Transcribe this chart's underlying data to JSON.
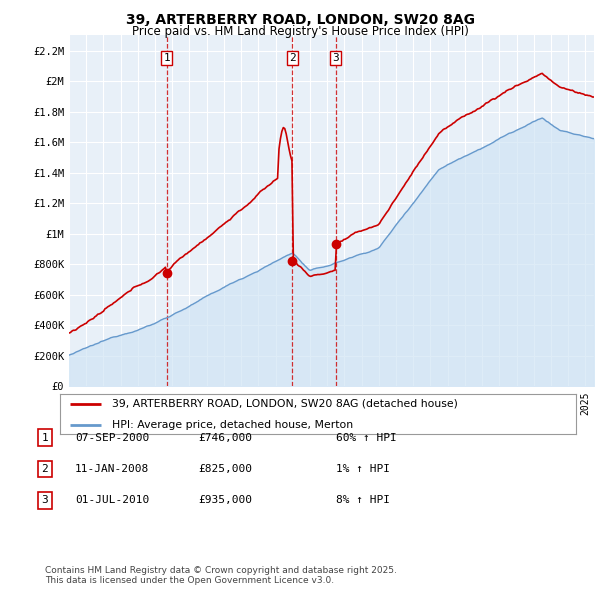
{
  "title_line1": "39, ARTERBERRY ROAD, LONDON, SW20 8AG",
  "title_line2": "Price paid vs. HM Land Registry's House Price Index (HPI)",
  "ylim": [
    0,
    2300000
  ],
  "yticks": [
    0,
    200000,
    400000,
    600000,
    800000,
    1000000,
    1200000,
    1400000,
    1600000,
    1800000,
    2000000,
    2200000
  ],
  "ytick_labels": [
    "£0",
    "£200K",
    "£400K",
    "£600K",
    "£800K",
    "£1M",
    "£1.2M",
    "£1.4M",
    "£1.6M",
    "£1.8M",
    "£2M",
    "£2.2M"
  ],
  "red_line_color": "#cc0000",
  "blue_line_color": "#6699cc",
  "blue_fill_color": "#d0e4f5",
  "purchase_year_floats": [
    2000.68,
    2007.97,
    2010.5
  ],
  "purchase_prices": [
    746000,
    825000,
    935000
  ],
  "purchase_labels": [
    "1",
    "2",
    "3"
  ],
  "legend_line1": "39, ARTERBERRY ROAD, LONDON, SW20 8AG (detached house)",
  "legend_line2": "HPI: Average price, detached house, Merton",
  "table_entries": [
    {
      "num": "1",
      "date": "07-SEP-2000",
      "price": "£746,000",
      "change": "60% ↑ HPI"
    },
    {
      "num": "2",
      "date": "11-JAN-2008",
      "price": "£825,000",
      "change": "1% ↑ HPI"
    },
    {
      "num": "3",
      "date": "01-JUL-2010",
      "price": "£935,000",
      "change": "8% ↑ HPI"
    }
  ],
  "footer": "Contains HM Land Registry data © Crown copyright and database right 2025.\nThis data is licensed under the Open Government Licence v3.0.",
  "background_color": "#ffffff",
  "grid_color": "#c8d8e8"
}
